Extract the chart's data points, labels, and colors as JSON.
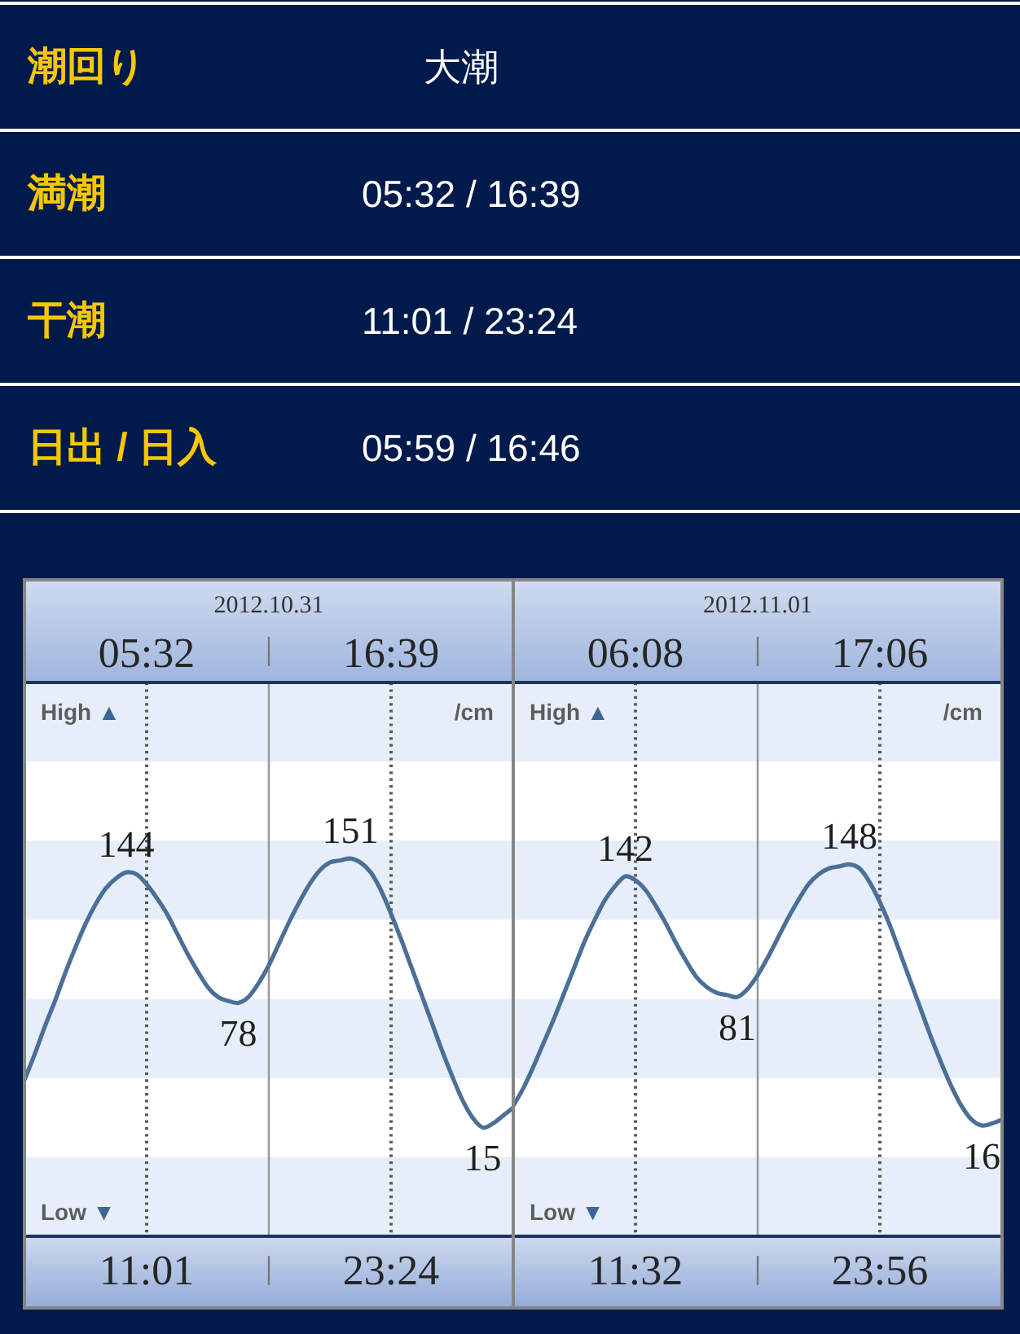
{
  "chart_data": [
    {
      "type": "other",
      "annotations": [
        "潮回り",
        "大潮",
        "満潮",
        "05:32 / 16:39",
        "干潮",
        "11:01 / 23:24",
        "日出 / 日入",
        "05:59 / 16:46"
      ]
    },
    {
      "type": "line",
      "title": "2012.10.31",
      "ylabel": "/cm",
      "ylim": [
        -40,
        240
      ],
      "tick_labels": false,
      "categories": [
        null,
        null,
        null,
        null,
        null,
        null,
        null,
        null,
        null,
        null,
        null,
        null,
        null,
        null,
        null,
        null,
        null,
        null,
        null,
        null,
        null,
        null,
        null,
        null,
        null,
        null,
        null,
        null,
        null,
        null,
        null,
        null,
        null,
        null,
        null,
        null,
        null,
        null,
        null,
        null,
        null,
        null,
        null,
        null,
        null,
        null,
        null,
        null,
        null
      ],
      "series": [
        {
          "color": "#4b6f98",
          "values": [
            39,
            52,
            66,
            79,
            93,
            106,
            118,
            128,
            136,
            141,
            144,
            143,
            138,
            131,
            123,
            113,
            103,
            94,
            86,
            81,
            79,
            78,
            81,
            88,
            97,
            108,
            119,
            129,
            138,
            145,
            149,
            150,
            151,
            149,
            144,
            135,
            123,
            110,
            96,
            82,
            68,
            54,
            41,
            29,
            20,
            15,
            17,
            21,
            25
          ],
          "value_labels": [
            null,
            null,
            null,
            null,
            null,
            null,
            null,
            null,
            null,
            null,
            "144",
            null,
            null,
            null,
            null,
            null,
            null,
            null,
            null,
            null,
            null,
            "78",
            null,
            null,
            null,
            null,
            null,
            null,
            null,
            null,
            null,
            null,
            "151",
            null,
            null,
            null,
            null,
            null,
            null,
            null,
            null,
            null,
            null,
            null,
            null,
            "15",
            null,
            null,
            null
          ]
        }
      ],
      "annotations": [
        "05:32",
        "16:39",
        "11:01",
        "23:24",
        "High ▲",
        "Low ▼"
      ]
    },
    {
      "type": "line",
      "title": "2012.11.01",
      "ylabel": "/cm",
      "ylim": [
        -40,
        240
      ],
      "tick_labels": false,
      "categories": [
        null,
        null,
        null,
        null,
        null,
        null,
        null,
        null,
        null,
        null,
        null,
        null,
        null,
        null,
        null,
        null,
        null,
        null,
        null,
        null,
        null,
        null,
        null,
        null,
        null,
        null,
        null,
        null,
        null,
        null,
        null,
        null,
        null,
        null,
        null,
        null,
        null,
        null,
        null,
        null,
        null,
        null,
        null,
        null,
        null,
        null,
        null,
        null,
        null
      ],
      "series": [
        {
          "color": "#4b6f98",
          "values": [
            26,
            35,
            46,
            58,
            70,
            83,
            96,
            109,
            120,
            130,
            137,
            142,
            140,
            135,
            127,
            118,
            108,
            99,
            91,
            86,
            83,
            82,
            81,
            85,
            92,
            101,
            111,
            121,
            130,
            138,
            143,
            146,
            147,
            148,
            146,
            139,
            129,
            117,
            103,
            89,
            75,
            61,
            48,
            36,
            26,
            19,
            16,
            17,
            19
          ],
          "value_labels": [
            null,
            null,
            null,
            null,
            null,
            null,
            null,
            null,
            null,
            null,
            null,
            "142",
            null,
            null,
            null,
            null,
            null,
            null,
            null,
            null,
            null,
            null,
            "81",
            null,
            null,
            null,
            null,
            null,
            null,
            null,
            null,
            null,
            null,
            "148",
            null,
            null,
            null,
            null,
            null,
            null,
            null,
            null,
            null,
            null,
            null,
            null,
            "16",
            null,
            null
          ]
        }
      ],
      "annotations": [
        "06:08",
        "17:06",
        "11:32",
        "23:56",
        "High ▲",
        "Low ▼"
      ]
    }
  ]
}
